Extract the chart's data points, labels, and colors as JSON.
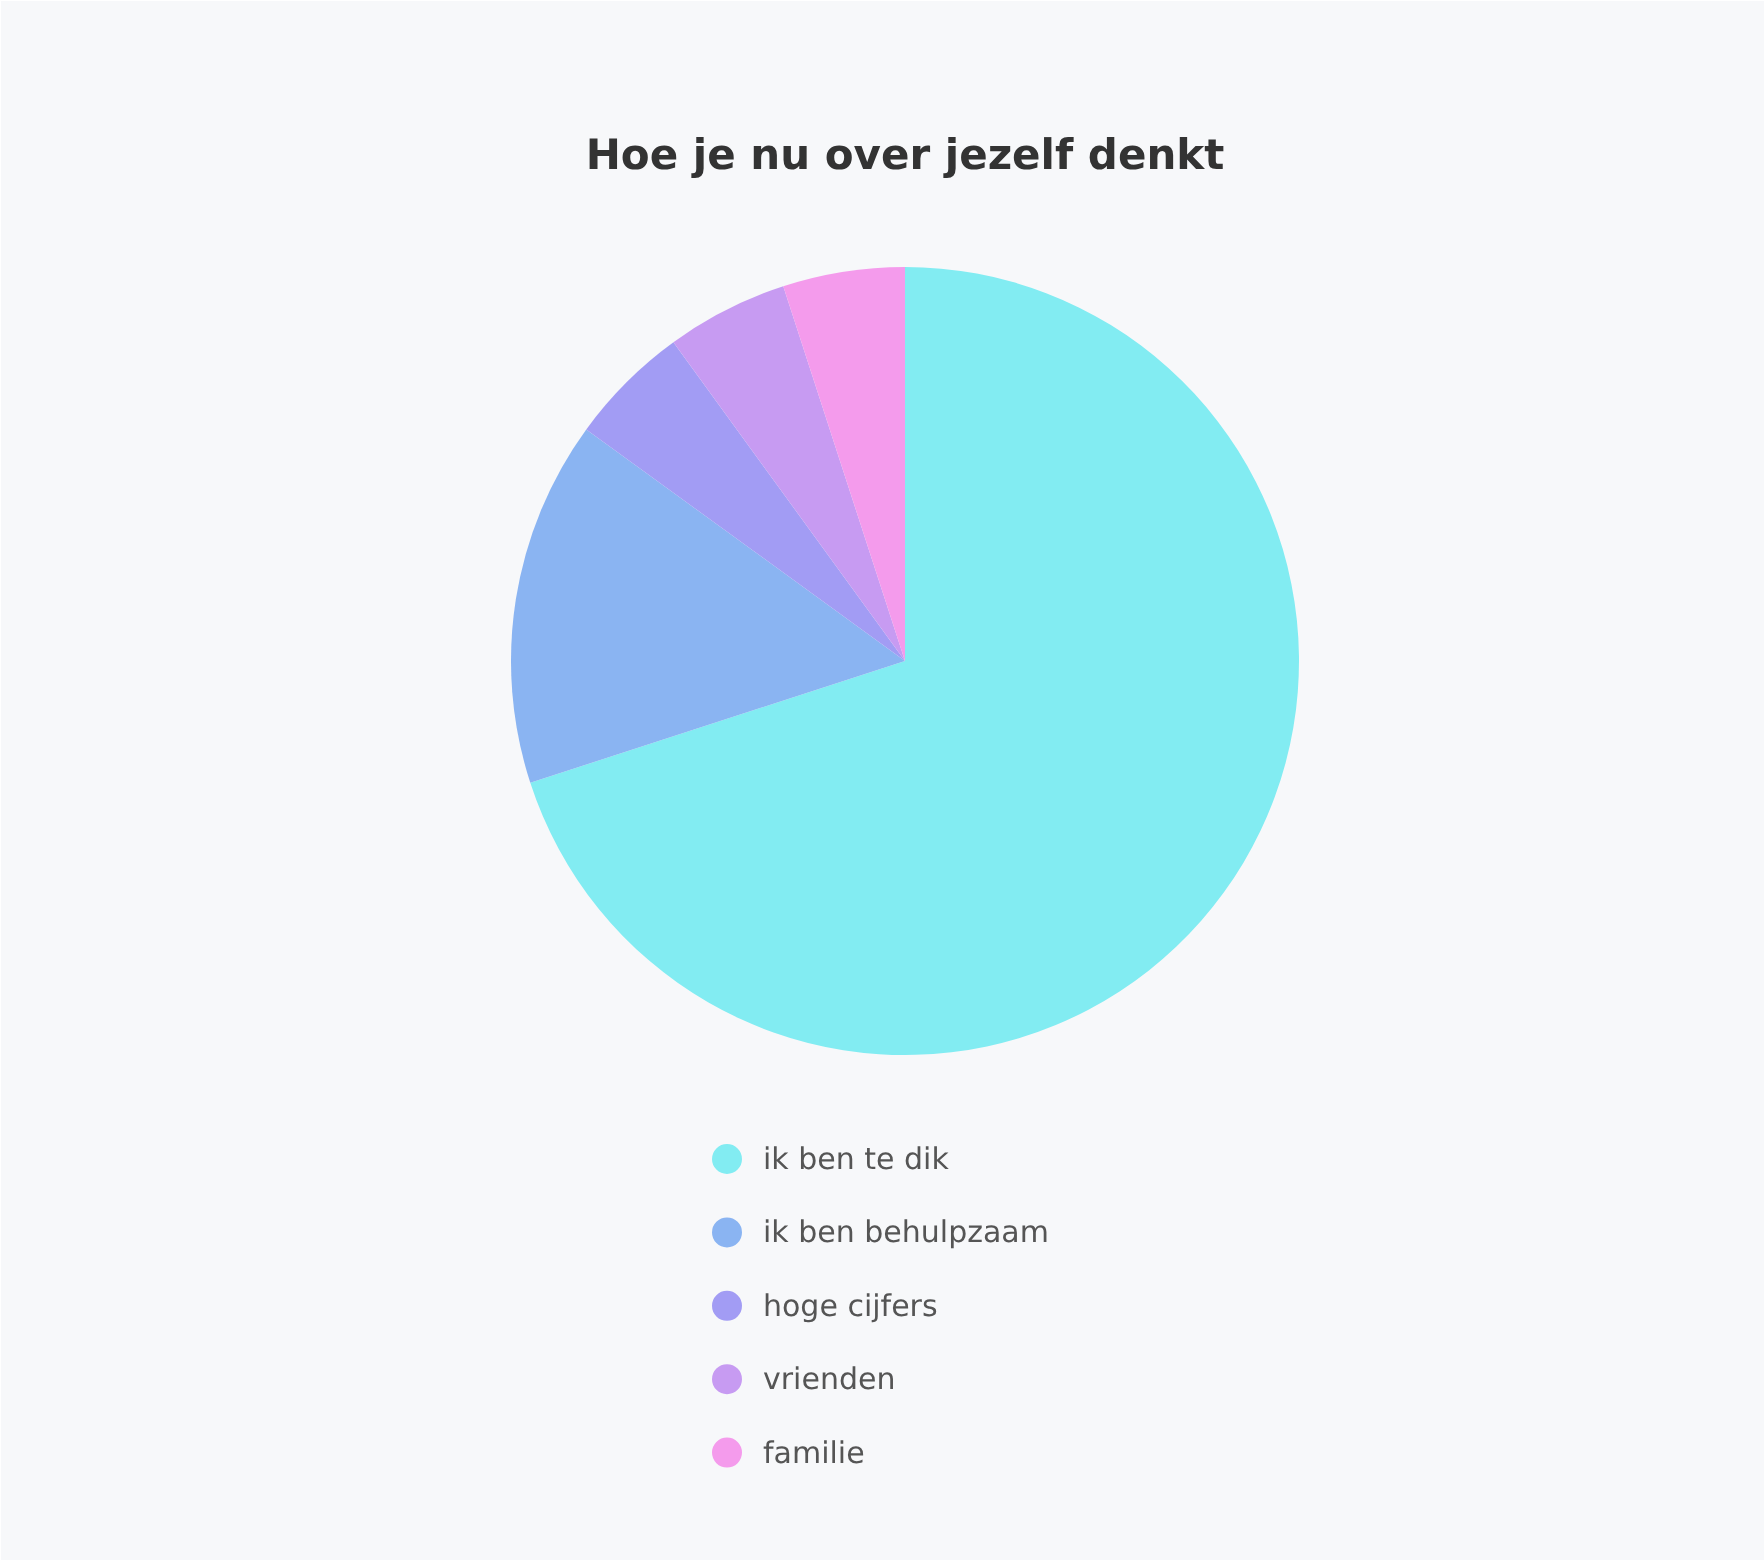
{
  "chart_data": {
    "type": "pie",
    "title": "Hoe je nu over jezelf denkt",
    "categories": [
      "ik ben te dik",
      "ik ben behulpzaam",
      "hoge cijfers",
      "vrienden",
      "familie"
    ],
    "values": [
      70,
      15,
      5,
      5,
      5
    ],
    "colors": [
      "#82ecf2",
      "#8ab4f2",
      "#a29cf4",
      "#c79bf2",
      "#f49bec"
    ],
    "legend": "bottom"
  }
}
